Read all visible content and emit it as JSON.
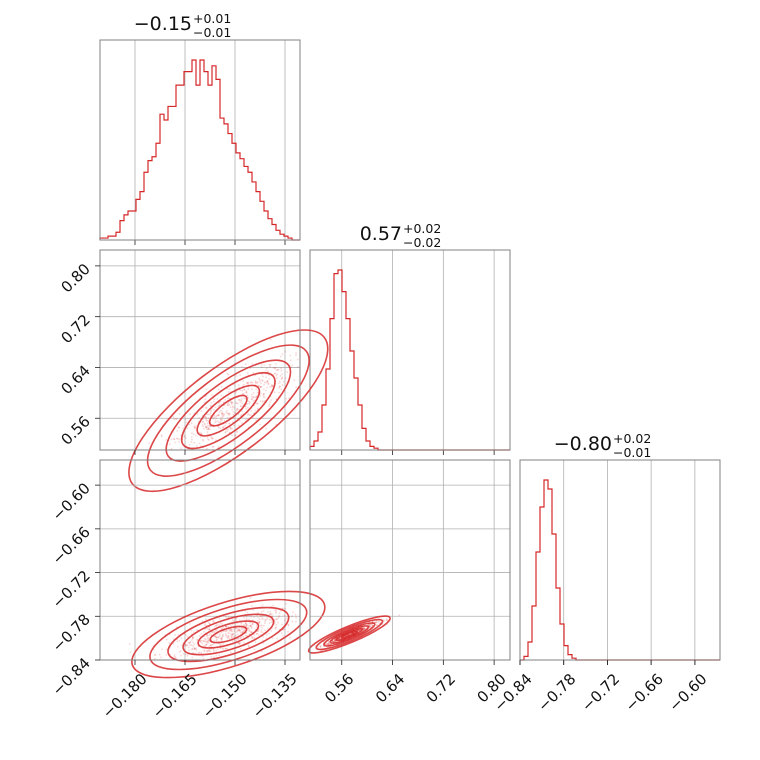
{
  "chart_data": {
    "type": "corner",
    "color": "#d62728",
    "parameters": [
      {
        "range": [
          -0.1905,
          -0.1305
        ],
        "ticks": [
          "−0.180",
          "−0.165",
          "−0.150",
          "−0.135"
        ],
        "tick_values": [
          -0.18,
          -0.165,
          -0.15,
          -0.135
        ],
        "title_main": "−0.15",
        "title_sup": "+0.01",
        "title_sub": "−0.01"
      },
      {
        "range": [
          0.51,
          0.825
        ],
        "ticks": [
          "0.56",
          "0.64",
          "0.72",
          "0.80"
        ],
        "tick_values": [
          0.56,
          0.64,
          0.72,
          0.8
        ],
        "title_main": "0.57",
        "title_sup": "+0.02",
        "title_sub": "−0.02"
      },
      {
        "range": [
          -0.84,
          -0.5655
        ],
        "ticks": [
          "−0.84",
          "−0.78",
          "−0.72",
          "−0.66",
          "−0.60"
        ],
        "tick_values": [
          -0.84,
          -0.78,
          -0.72,
          -0.66,
          -0.6
        ],
        "title_main": "−0.80",
        "title_sup": "+0.02",
        "title_sub": "−0.01"
      }
    ],
    "y_ticks": {
      "p1": {
        "ticks": [
          "0.80",
          "0.72",
          "0.64",
          "0.56"
        ],
        "tick_values": [
          0.8,
          0.72,
          0.64,
          0.56
        ]
      },
      "p2": {
        "ticks": [
          "−0.60",
          "−0.66",
          "−0.72",
          "−0.78",
          "−0.84"
        ],
        "tick_values": [
          -0.6,
          -0.66,
          -0.72,
          -0.78,
          -0.84
        ]
      }
    },
    "histograms": [
      {
        "param": 0,
        "values": [
          0.01,
          0.01,
          0.02,
          0.02,
          0.04,
          0.1,
          0.13,
          0.15,
          0.15,
          0.21,
          0.25,
          0.35,
          0.41,
          0.43,
          0.5,
          0.65,
          0.62,
          0.69,
          0.69,
          0.8,
          0.8,
          0.87,
          0.87,
          0.93,
          0.8,
          0.93,
          0.87,
          0.8,
          0.9,
          0.83,
          0.63,
          0.6,
          0.55,
          0.5,
          0.45,
          0.42,
          0.38,
          0.35,
          0.3,
          0.25,
          0.2,
          0.15,
          0.11,
          0.08,
          0.05,
          0.03,
          0.02,
          0.01,
          0.0,
          0.0
        ]
      },
      {
        "param": 1,
        "values": [
          0.02,
          0.05,
          0.1,
          0.25,
          0.45,
          0.73,
          0.98,
          1.0,
          0.88,
          0.73,
          0.55,
          0.4,
          0.25,
          0.12,
          0.05,
          0.02,
          0.01,
          0.0,
          0.0,
          0.0,
          0.0,
          0.0,
          0.0,
          0.0,
          0.0,
          0.0,
          0.0,
          0.0,
          0.0,
          0.0,
          0.0,
          0.0,
          0.0,
          0.0,
          0.0,
          0.0,
          0.0,
          0.0,
          0.0,
          0.0,
          0.0,
          0.0,
          0.0,
          0.0,
          0.0,
          0.0,
          0.0,
          0.0,
          0.0,
          0.0
        ]
      },
      {
        "param": 2,
        "values": [
          0.0,
          0.02,
          0.1,
          0.3,
          0.6,
          0.85,
          1.0,
          0.95,
          0.7,
          0.4,
          0.2,
          0.08,
          0.03,
          0.01,
          0.0,
          0.0,
          0.0,
          0.0,
          0.0,
          0.0,
          0.0,
          0.0,
          0.0,
          0.0,
          0.0,
          0.0,
          0.0,
          0.0,
          0.0,
          0.0,
          0.0,
          0.0,
          0.0,
          0.0,
          0.0,
          0.0,
          0.0,
          0.0,
          0.0,
          0.0,
          0.0,
          0.0,
          0.0,
          0.0,
          0.0,
          0.0,
          0.0,
          0.0,
          0.0,
          0.0
        ]
      }
    ],
    "correlations": [
      {
        "x_param": 0,
        "y_param": 1,
        "mean": [
          -0.152,
          0.572
        ],
        "slope": 4.0,
        "along_sd": 0.009,
        "perp_sd": 0.004,
        "sample_extent": [
          [
            -0.188,
            0.525
          ],
          [
            -0.134,
            0.64
          ]
        ]
      },
      {
        "x_param": 0,
        "y_param": 2,
        "mean": [
          -0.152,
          -0.805
        ],
        "slope": 1.45,
        "along_sd": 0.009,
        "perp_sd": 0.003,
        "sample_extent": [
          [
            -0.188,
            -0.84
          ],
          [
            -0.134,
            -0.785
          ]
        ]
      },
      {
        "x_param": 1,
        "y_param": 2,
        "mean": [
          0.572,
          -0.805
        ],
        "slope": 0.36,
        "along_sd": 0.02,
        "perp_sd": 0.004,
        "sample_extent": [
          [
            0.51,
            -0.84
          ],
          [
            0.67,
            -0.76
          ]
        ]
      }
    ],
    "grid": true
  }
}
